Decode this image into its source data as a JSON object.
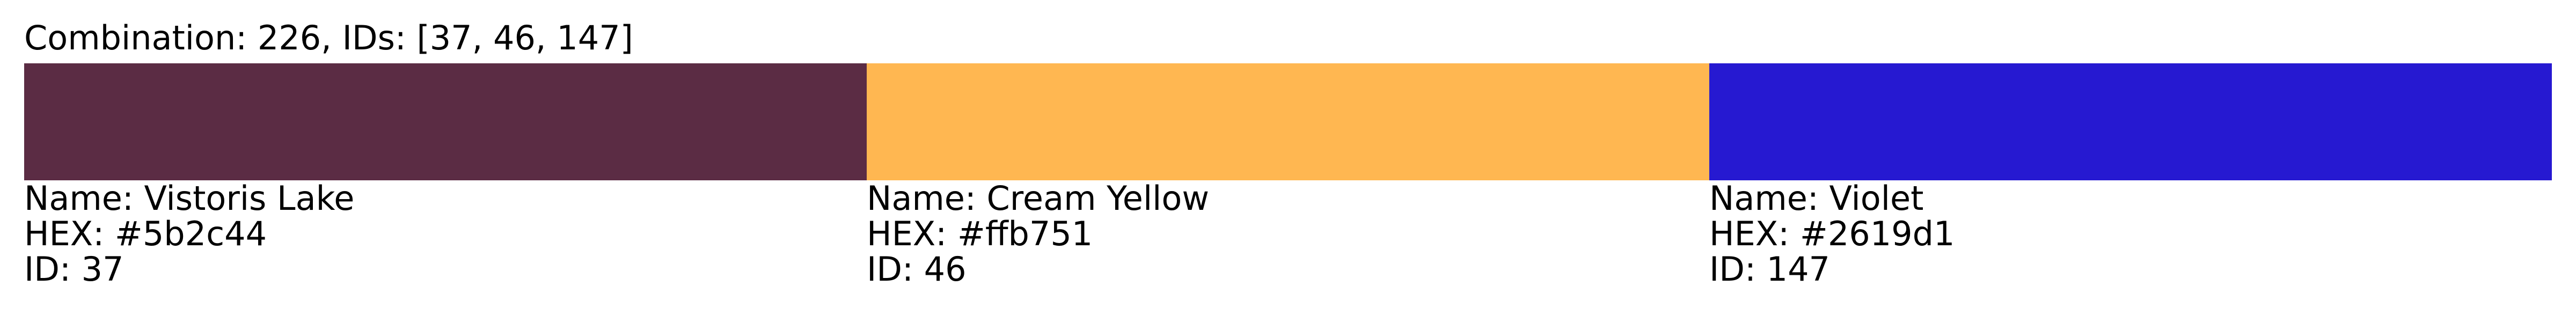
{
  "title": "Combination: 226, IDs: [37, 46, 147]",
  "colors": [
    {
      "name_line": "Name: Vistoris Lake",
      "hex_line": "HEX: #5b2c44",
      "id_line": "ID: 37",
      "hex": "#5b2c44"
    },
    {
      "name_line": "Name: Cream Yellow",
      "hex_line": "HEX: #ffb751",
      "id_line": "ID: 46",
      "hex": "#ffb751"
    },
    {
      "name_line": "Name: Violet",
      "hex_line": "HEX: #2619d1",
      "id_line": "ID: 147",
      "hex": "#2619d1"
    }
  ]
}
